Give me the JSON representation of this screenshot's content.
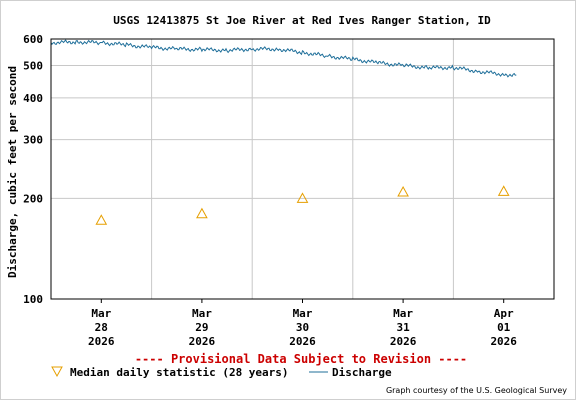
{
  "chart_data": {
    "type": "line",
    "title": "USGS 12413875 St Joe River at Red Ives Ranger Station, ID",
    "ylabel": "Discharge, cubic feet per second",
    "yscale": "log",
    "ylim": [
      100,
      600
    ],
    "yticks": [
      {
        "value": 100,
        "label": "100"
      },
      {
        "value": 200,
        "label": "200"
      },
      {
        "value": 300,
        "label": "300"
      },
      {
        "value": 400,
        "label": "400"
      },
      {
        "value": 500,
        "label": "500"
      },
      {
        "value": 600,
        "label": "600"
      }
    ],
    "xlim": [
      "2026-03-27T12:00",
      "2026-04-01T12:00"
    ],
    "xticks": [
      {
        "value": "2026-03-28",
        "label": [
          "Mar",
          "28",
          "2026"
        ]
      },
      {
        "value": "2026-03-29",
        "label": [
          "Mar",
          "29",
          "2026"
        ]
      },
      {
        "value": "2026-03-30",
        "label": [
          "Mar",
          "30",
          "2026"
        ]
      },
      {
        "value": "2026-03-31",
        "label": [
          "Mar",
          "31",
          "2026"
        ]
      },
      {
        "value": "2026-04-01",
        "label": [
          "Apr",
          "01",
          "2026"
        ]
      }
    ],
    "grid": true,
    "series": [
      {
        "name": "Discharge",
        "color": "#1f6f9a",
        "points": [
          [
            "2026-03-27T12:00",
            585
          ],
          [
            "2026-03-27T18:00",
            588
          ],
          [
            "2026-03-28T00:00",
            585
          ],
          [
            "2026-03-28T06:00",
            576
          ],
          [
            "2026-03-28T12:00",
            566
          ],
          [
            "2026-03-28T18:00",
            560
          ],
          [
            "2026-03-29T00:00",
            558
          ],
          [
            "2026-03-29T06:00",
            555
          ],
          [
            "2026-03-29T12:00",
            560
          ],
          [
            "2026-03-29T18:00",
            560
          ],
          [
            "2026-03-30T00:00",
            547
          ],
          [
            "2026-03-30T06:00",
            533
          ],
          [
            "2026-03-30T12:00",
            522
          ],
          [
            "2026-03-30T18:00",
            509
          ],
          [
            "2026-03-31T00:00",
            500
          ],
          [
            "2026-03-31T06:00",
            492
          ],
          [
            "2026-03-31T12:00",
            493
          ],
          [
            "2026-03-31T18:00",
            480
          ],
          [
            "2026-04-01T00:00",
            470
          ],
          [
            "2026-04-01T03:00",
            468
          ]
        ]
      },
      {
        "name": "Median daily statistic (28 years)",
        "color": "#e69f00",
        "marker": "triangle",
        "points": [
          [
            "2026-03-28T00:00",
            172
          ],
          [
            "2026-03-29T00:00",
            180
          ],
          [
            "2026-03-30T00:00",
            200
          ],
          [
            "2026-03-31T00:00",
            209
          ],
          [
            "2026-04-01T00:00",
            210
          ]
        ]
      }
    ]
  },
  "notice": "---- Provisional Data Subject to Revision ----",
  "legend": {
    "median_label": "Median daily statistic (28 years)",
    "discharge_label": "Discharge"
  },
  "credit": "Graph courtesy of the U.S. Geological Survey"
}
